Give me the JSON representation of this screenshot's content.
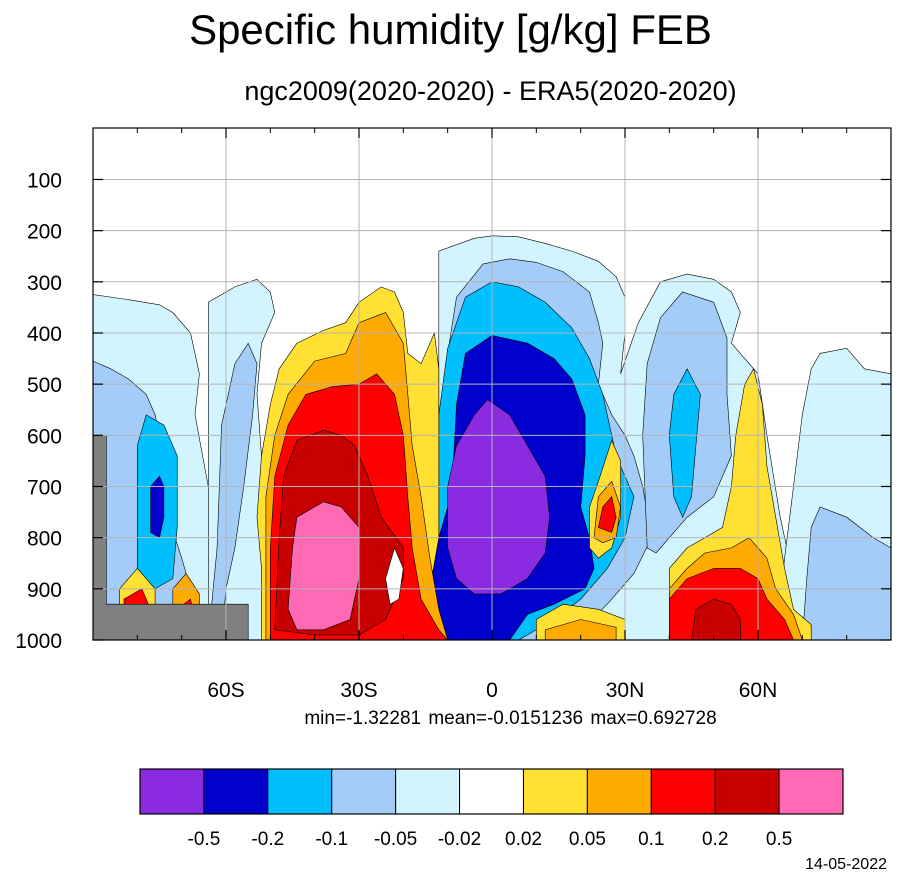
{
  "title": "Specific humidity [g/kg] FEB",
  "subtitle": "ngc2009(2020-2020) - ERA5(2020-2020)",
  "stats": {
    "min": "-1.32281",
    "mean": "-0.0151236",
    "max": "0.692728",
    "text": "min=-1.32281    mean=-0.0151236    max=0.692728"
  },
  "date": "14-05-2022",
  "chart_data": {
    "type": "heatmap",
    "description_units": "g/kg difference, latitude vs pressure level (hPa)",
    "x_axis": {
      "ticks": [
        -60,
        -30,
        0,
        30,
        60
      ],
      "tick_labels": [
        "60S",
        "30S",
        "0",
        "30N",
        "60N"
      ],
      "range": [
        -90,
        90
      ]
    },
    "y_axis": {
      "ticks": [
        100,
        200,
        300,
        400,
        500,
        600,
        700,
        800,
        900,
        1000
      ],
      "tick_labels": [
        "100",
        "200",
        "300",
        "400",
        "500",
        "600",
        "700",
        "800",
        "900",
        "1000"
      ],
      "range": [
        1000,
        10
      ],
      "inverted": true
    },
    "grid": true,
    "colorbar": {
      "levels": [
        "-0.5",
        "-0.2",
        "-0.1",
        "-0.05",
        "-0.02",
        "0.02",
        "0.05",
        "0.1",
        "0.2",
        "0.5"
      ],
      "colors": [
        "#8a2be2",
        "#0000cd",
        "#00bfff",
        "#a4ccf8",
        "#d2f4ff",
        "#ffffff",
        "#ffe033",
        "#ffaa00",
        "#ff0000",
        "#c80000",
        "#ff69b4"
      ]
    },
    "missing_color": "#808080",
    "features": [
      {
        "name": "tropical dry core",
        "lat_range": [
          -10,
          12
        ],
        "p_range": [
          540,
          920
        ],
        "bin": "< -0.5"
      },
      {
        "name": "southern subtropics moist",
        "lat_range": [
          -48,
          -20
        ],
        "p_range": [
          400,
          1000
        ],
        "max_bin": "> 0.5"
      },
      {
        "name": "northern midlatitude moist",
        "lat_range": [
          40,
          66
        ],
        "p_range": [
          470,
          1000
        ],
        "max_bin": "0.2 to 0.5"
      },
      {
        "name": "northern subtropics moist cell",
        "lat_range": [
          22,
          30
        ],
        "p_range": [
          700,
          840
        ],
        "max_bin": "0.2 to 0.5"
      }
    ]
  }
}
